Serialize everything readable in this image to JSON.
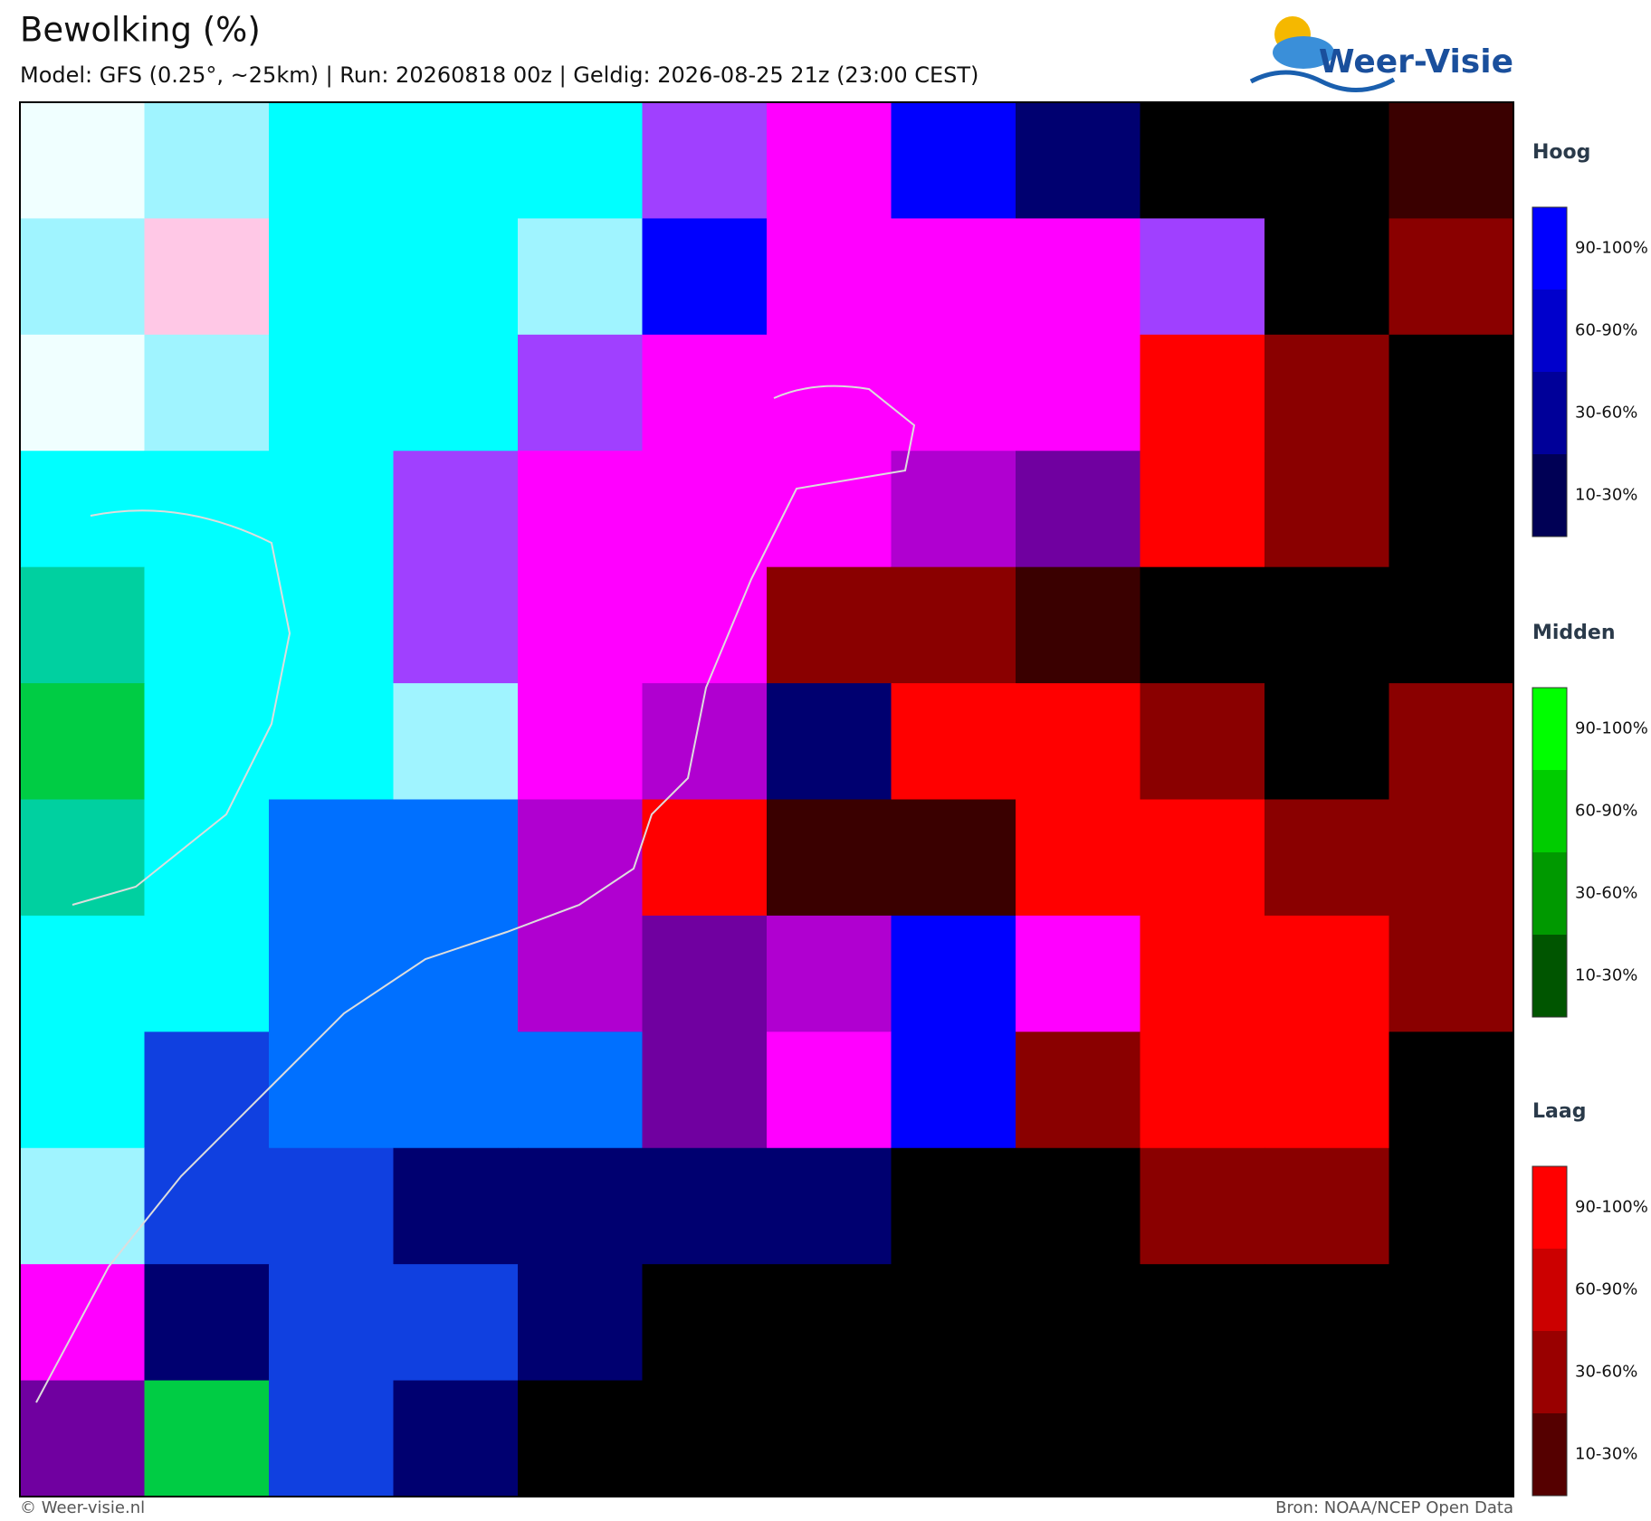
{
  "header": {
    "title": "Bewolking (%)",
    "subtitle": "Model: GFS (0.25°, ~25km)  |  Run: 20260818 00z  |  Geldig: 2026-08-25 21z (23:00 CEST)"
  },
  "logo": {
    "text": "Weer-Visie"
  },
  "legend": [
    {
      "title": "Hoog",
      "items": [
        "90-100%",
        "60-90%",
        "30-60%",
        "10-30%"
      ]
    },
    {
      "title": "Midden",
      "items": [
        "90-100%",
        "60-90%",
        "30-60%",
        "10-30%"
      ]
    },
    {
      "title": "Laag",
      "items": [
        "90-100%",
        "60-90%",
        "30-60%",
        "10-30%"
      ]
    }
  ],
  "footer": {
    "left": "© Weer-visie.nl",
    "right": "Bron: NOAA/NCEP Open Data"
  }
}
